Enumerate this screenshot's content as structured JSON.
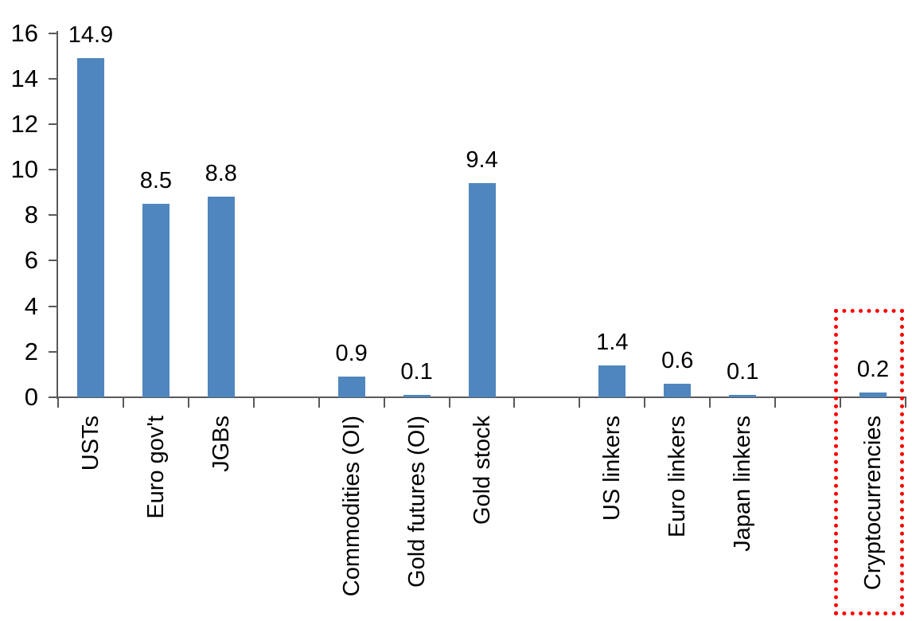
{
  "chart_data": {
    "type": "bar",
    "title": "",
    "xlabel": "",
    "ylabel": "",
    "categories": [
      "USTs",
      "Euro gov't",
      "JGBs",
      "Commodities (OI)",
      "Gold futures (OI)",
      "Gold stock",
      "US linkers",
      "Euro linkers",
      "Japan linkers",
      "Cryptocurrencies"
    ],
    "values": [
      14.9,
      8.5,
      8.8,
      0.9,
      0.1,
      9.4,
      1.4,
      0.6,
      0.1,
      0.2
    ],
    "value_labels": [
      "14.9",
      "8.5",
      "8.8",
      "0.9",
      "0.1",
      "9.4",
      "1.4",
      "0.6",
      "0.1",
      "0.2"
    ],
    "group_gaps_after": [
      "JGBs",
      "Gold stock",
      "Japan linkers"
    ],
    "ylim": [
      0,
      16
    ],
    "ytick_interval": 2,
    "ytick_labels": [
      "0",
      "2",
      "4",
      "6",
      "8",
      "10",
      "12",
      "14",
      "16"
    ],
    "grid": false,
    "legend": null,
    "bar_color": "#4F86BE",
    "axis_color": "#595959",
    "text_color": "#000000",
    "annotation": {
      "type": "highlight-box",
      "category": "Cryptocurrencies",
      "border_color": "#FF0000",
      "border_style": "dotted"
    }
  }
}
